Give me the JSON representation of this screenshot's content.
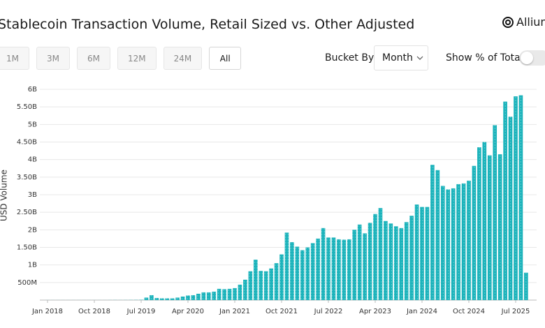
{
  "header": {
    "brand": "Allium"
  },
  "controls": {
    "ranges": [
      "1M",
      "3M",
      "6M",
      "12M",
      "24M",
      "All"
    ],
    "selected": 5,
    "bucket_label": "Bucket By",
    "bucket_value": "Month",
    "toggle_label": "Show % of Total",
    "toggle_on": false
  },
  "chart_data": {
    "type": "bar",
    "title": "Stablecoin Transaction Volume, Retail Sized vs. Other Adjusted",
    "ylabel": "USD Volume",
    "categories": [
      "Jan 2018",
      null,
      null,
      null,
      null,
      null,
      null,
      null,
      null,
      "Oct 2018",
      null,
      null,
      null,
      null,
      null,
      null,
      null,
      null,
      "Jul 2019",
      null,
      null,
      null,
      null,
      null,
      null,
      null,
      null,
      "Apr 2020",
      null,
      null,
      null,
      null,
      null,
      null,
      null,
      null,
      "Jan 2021",
      null,
      null,
      null,
      null,
      null,
      null,
      null,
      null,
      "Oct 2021",
      null,
      null,
      null,
      null,
      null,
      null,
      null,
      null,
      "Jul 2022",
      null,
      null,
      null,
      null,
      null,
      null,
      null,
      null,
      "Apr 2023",
      null,
      null,
      null,
      null,
      null,
      null,
      null,
      null,
      "Jan 2024",
      null,
      null,
      null,
      null,
      null,
      null,
      null,
      null,
      "Oct 2024",
      null,
      null,
      null,
      null,
      null,
      null,
      null,
      null,
      "Jul 2025",
      null,
      null
    ],
    "values": [
      1000000,
      1000000,
      1000000,
      1000000,
      1000000,
      1000000,
      1000000,
      1000000,
      1000000,
      1000000,
      1000000,
      1000000,
      2000000,
      3000000,
      2000000,
      3000000,
      4000000,
      5000000,
      8000000,
      70000000,
      140000000,
      60000000,
      50000000,
      50000000,
      50000000,
      70000000,
      100000000,
      130000000,
      140000000,
      180000000,
      220000000,
      220000000,
      240000000,
      320000000,
      310000000,
      320000000,
      340000000,
      440000000,
      580000000,
      820000000,
      1150000000,
      830000000,
      820000000,
      900000000,
      1050000000,
      1300000000,
      1920000000,
      1650000000,
      1520000000,
      1420000000,
      1500000000,
      1620000000,
      1750000000,
      2050000000,
      1780000000,
      1780000000,
      1730000000,
      1720000000,
      1730000000,
      2000000000,
      2150000000,
      1900000000,
      2200000000,
      2450000000,
      2620000000,
      2250000000,
      2180000000,
      2100000000,
      2050000000,
      2220000000,
      2400000000,
      2720000000,
      2650000000,
      2650000000,
      3850000000,
      3700000000,
      3250000000,
      3150000000,
      3180000000,
      3300000000,
      3320000000,
      3400000000,
      3820000000,
      4350000000,
      4500000000,
      4120000000,
      4980000000,
      4150000000,
      5650000000,
      5220000000,
      5800000000,
      5830000000,
      780000000
    ],
    "color": "#1bb3bb",
    "ylim": [
      0,
      6000000000
    ],
    "yticks": [
      {
        "value": 500000000,
        "label": "500M"
      },
      {
        "value": 1000000000,
        "label": "1B"
      },
      {
        "value": 1500000000,
        "label": "1.50B"
      },
      {
        "value": 2000000000,
        "label": "2B"
      },
      {
        "value": 2500000000,
        "label": "2.50B"
      },
      {
        "value": 3000000000,
        "label": "3B"
      },
      {
        "value": 3500000000,
        "label": "3.50B"
      },
      {
        "value": 4000000000,
        "label": "4B"
      },
      {
        "value": 4500000000,
        "label": "4.50B"
      },
      {
        "value": 5000000000,
        "label": "5B"
      },
      {
        "value": 5500000000,
        "label": "5.50B"
      },
      {
        "value": 6000000000,
        "label": "6B"
      }
    ],
    "grid": true
  }
}
